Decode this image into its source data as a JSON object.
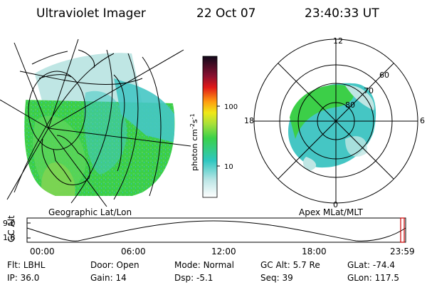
{
  "header": {
    "instrument": "Ultraviolet Imager",
    "date": "22 Oct 07",
    "time": "23:40:33 UT"
  },
  "geo_panel": {
    "label": "Geographic Lat/Lon"
  },
  "polar_panel": {
    "label": "Apex MLat/MLT",
    "mlt_labels": [
      "12",
      "18",
      "6",
      "0"
    ],
    "lat_labels": [
      "60",
      "70",
      "80"
    ]
  },
  "colorbar": {
    "unit_prefix": "photon cm",
    "unit_exp1": "-2",
    "unit_mid": "s",
    "unit_exp2": "-1",
    "ticks": [
      "100",
      "10"
    ]
  },
  "timeline": {
    "axis_label": "GC Alt",
    "y_ticks": [
      "9.0",
      "1.8"
    ],
    "x_ticks": [
      "00:00",
      "06:00",
      "12:00",
      "18:00",
      "23:59"
    ]
  },
  "info": {
    "row1": [
      {
        "label": "Flt:",
        "value": "LBHL"
      },
      {
        "label": "Door:",
        "value": "Open"
      },
      {
        "label": "Mode:",
        "value": "Normal"
      },
      {
        "label": "GC Alt:",
        "value": "5.7 Re"
      },
      {
        "label": "GLat:",
        "value": "-74.4"
      }
    ],
    "row2": [
      {
        "label": "IP:",
        "value": "36.0"
      },
      {
        "label": "Gain:",
        "value": "14"
      },
      {
        "label": "Dsp:",
        "value": "-5.1"
      },
      {
        "label": "Seq:",
        "value": "39"
      },
      {
        "label": "GLon:",
        "value": "117.5"
      }
    ]
  },
  "colors": {
    "aurora_green": "#3ecf44",
    "aurora_cyan": "#45c8c8",
    "aurora_pale": "#bfe8e6",
    "marker_red": "#cc0000"
  }
}
